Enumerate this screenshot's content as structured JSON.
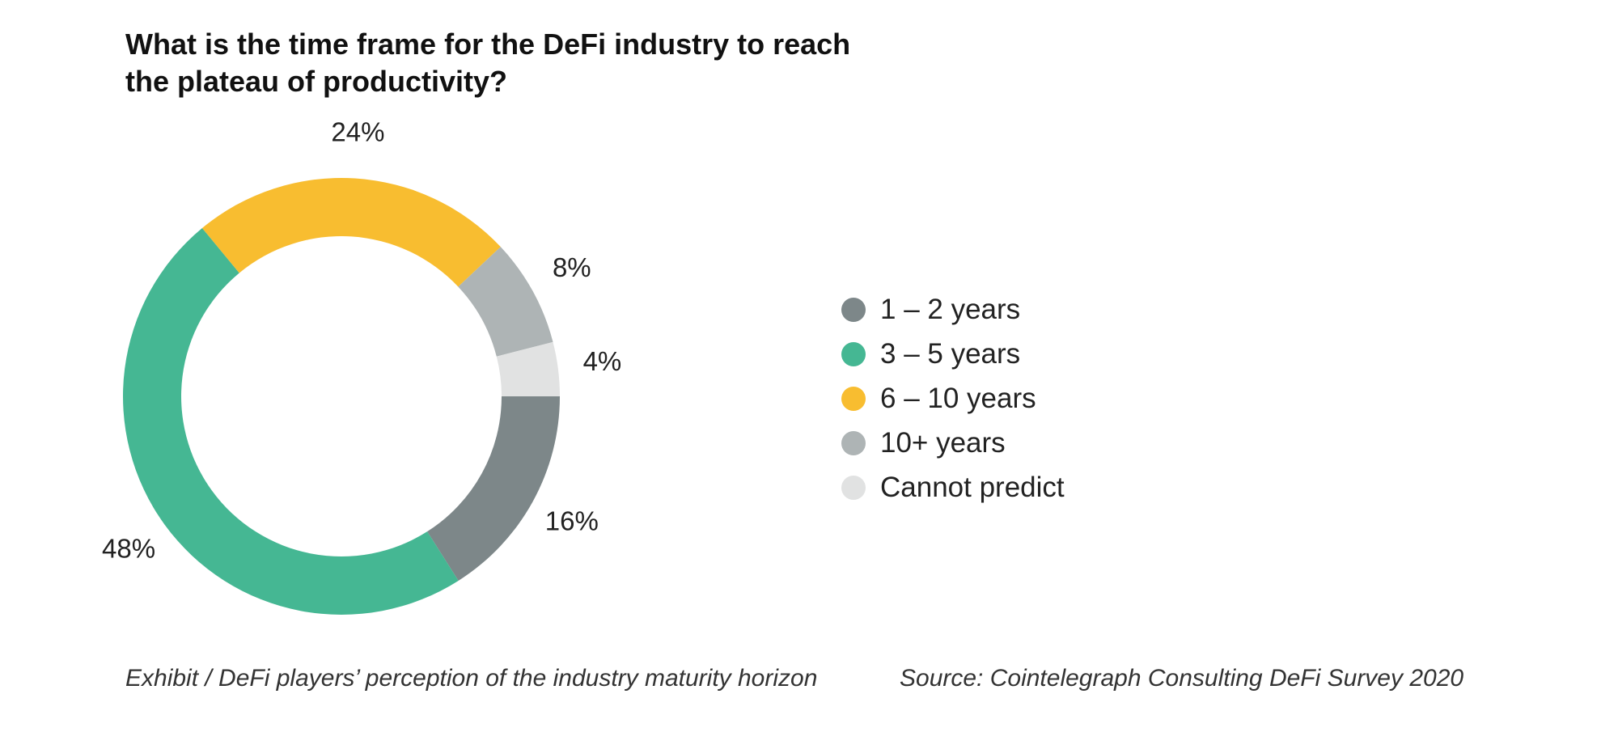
{
  "chart_data": {
    "type": "pie",
    "variant": "donut",
    "title": "What is the time frame for the DeFi industry to reach the plateau of productivity?",
    "categories": [
      "1 – 2 years",
      "3 – 5 years",
      "6 – 10 years",
      "10+ years",
      "Cannot predict"
    ],
    "values": [
      16,
      48,
      24,
      8,
      4
    ],
    "value_labels": [
      "16%",
      "48%",
      "24%",
      "8%",
      "4%"
    ],
    "colors": [
      "#7d8789",
      "#45b793",
      "#f8bd30",
      "#aeb4b5",
      "#e1e2e2"
    ],
    "legend_position": "right",
    "direction": "clockwise from 3 o'clock"
  },
  "legend": {
    "items": [
      {
        "label": "1 – 2 years",
        "color": "#7d8789"
      },
      {
        "label": "3 – 5 years",
        "color": "#45b793"
      },
      {
        "label": "6 – 10 years",
        "color": "#f8bd30"
      },
      {
        "label": "10+ years",
        "color": "#aeb4b5"
      },
      {
        "label": "Cannot predict",
        "color": "#e1e2e2"
      }
    ]
  },
  "footer": {
    "caption": "Exhibit / DeFi players’ perception of the industry maturity horizon",
    "source": "Source: Cointelegraph Consulting DeFi Survey 2020"
  }
}
